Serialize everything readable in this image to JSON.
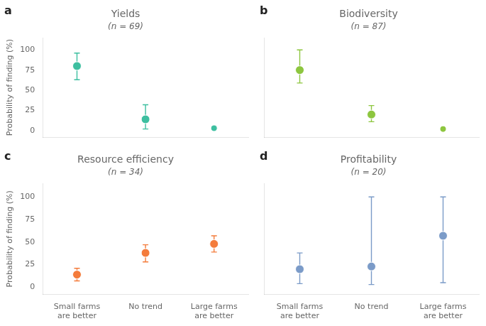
{
  "chart_data": [
    {
      "type": "scatter",
      "label": "a",
      "title": "Yields",
      "subtitle": "(n = 69)",
      "categories": [
        "Small farms\nare better",
        "No trend",
        "Large farms\nare better"
      ],
      "values": [
        80,
        14,
        3
      ],
      "yerr_low": [
        17,
        12,
        0
      ],
      "yerr_high": [
        16,
        18,
        0
      ],
      "color": "#3dbfa0",
      "marker": "circle",
      "ylabel": "Probability of finding (%)",
      "ylim": [
        -8,
        115
      ],
      "yticks": [
        0,
        25,
        50,
        75,
        100
      ],
      "grid": false,
      "tick_labels": "y"
    },
    {
      "type": "scatter",
      "label": "b",
      "title": "Biodiversity",
      "subtitle": "(n = 87)",
      "categories": [
        "Small farms\nare better",
        "No trend",
        "Large farms\nare better"
      ],
      "values": [
        75,
        20,
        2
      ],
      "yerr_low": [
        16,
        9,
        0
      ],
      "yerr_high": [
        25,
        11,
        0
      ],
      "color": "#8dc63f",
      "marker": "circle",
      "ylim": [
        -8,
        115
      ],
      "yticks": [
        0,
        25,
        50,
        75,
        100
      ],
      "grid": false,
      "tick_labels": false
    },
    {
      "type": "scatter",
      "label": "c",
      "title": "Resource efficiency",
      "subtitle": "(n = 34)",
      "categories": [
        "Small farms\nare better",
        "No trend",
        "Large farms\nare better"
      ],
      "values": [
        14,
        38,
        48
      ],
      "yerr_low": [
        7,
        10,
        9
      ],
      "yerr_high": [
        7,
        9,
        9
      ],
      "color": "#f47c3c",
      "marker": "circle",
      "ylabel": "Probability of finding (%)",
      "ylim": [
        -8,
        115
      ],
      "yticks": [
        0,
        25,
        50,
        75,
        100
      ],
      "grid": false,
      "tick_labels": true
    },
    {
      "type": "scatter",
      "label": "d",
      "title": "Profitability",
      "subtitle": "(n = 20)",
      "categories": [
        "Small farms\nare better",
        "No trend",
        "Large farms\nare better"
      ],
      "values": [
        20,
        23,
        57
      ],
      "yerr_low": [
        16,
        20,
        52
      ],
      "yerr_high": [
        18,
        77,
        43
      ],
      "color": "#7b9bc8",
      "marker": "circle",
      "ylim": [
        -8,
        115
      ],
      "yticks": [
        0,
        25,
        50,
        75,
        100
      ],
      "grid": false,
      "tick_labels": "x"
    }
  ]
}
